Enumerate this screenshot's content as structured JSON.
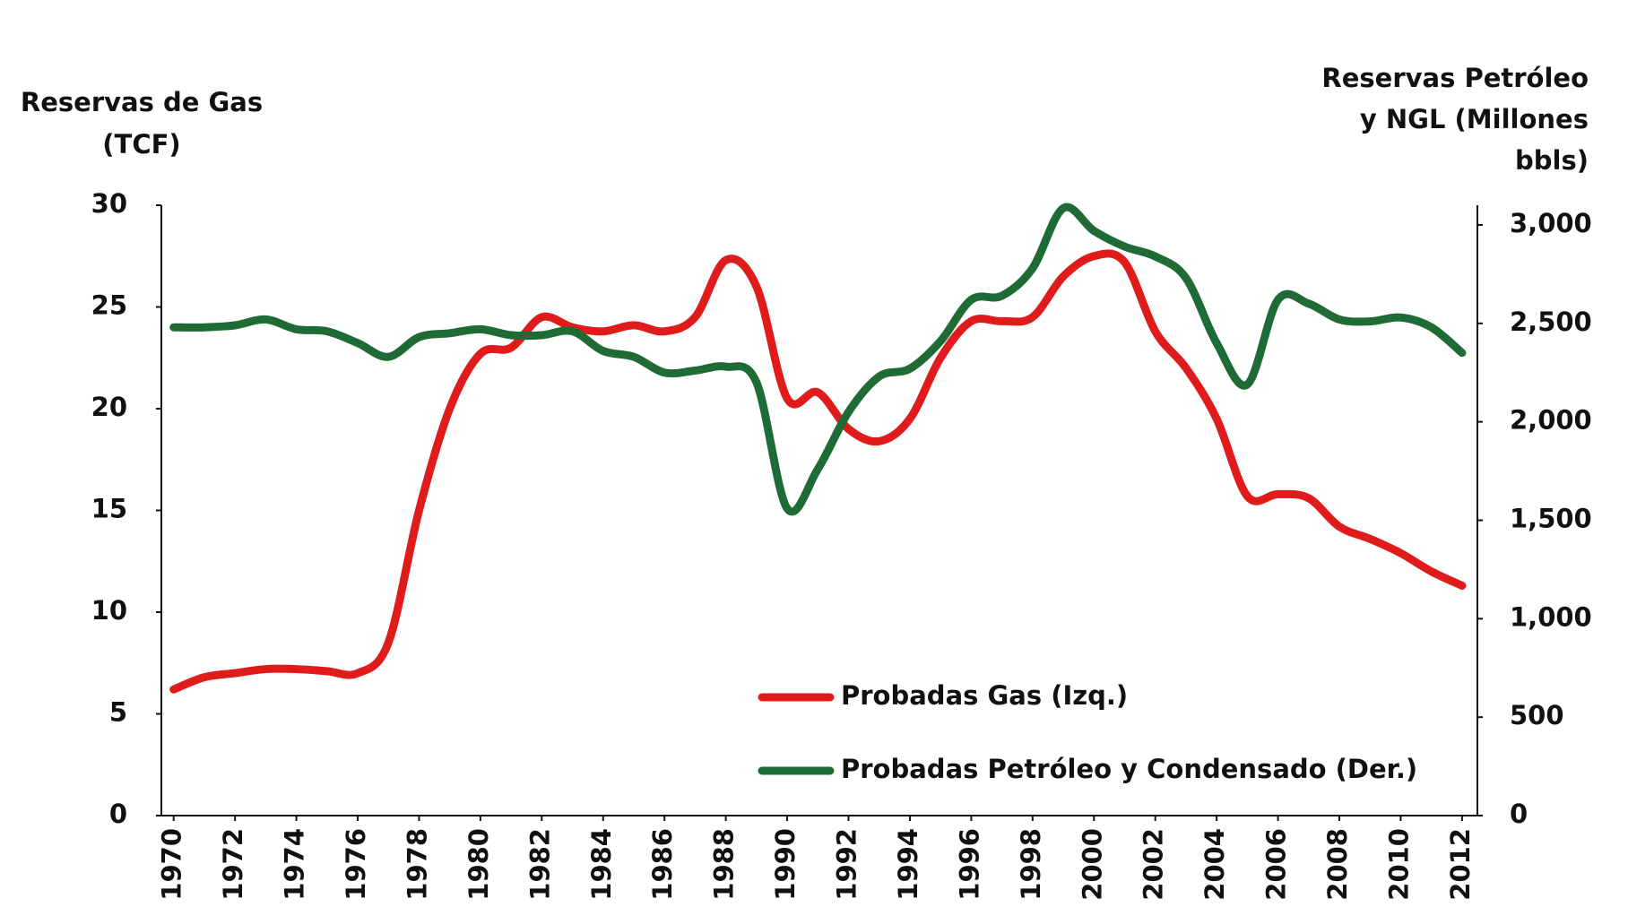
{
  "chart_data": {
    "type": "line",
    "y_title": [
      "Reservas de Gas",
      "(TCF)"
    ],
    "y2_title": [
      "Reservas  Petróleo",
      "y NGL (Millones",
      "bbls)"
    ],
    "x": [
      1970,
      1971,
      1972,
      1973,
      1974,
      1975,
      1976,
      1977,
      1978,
      1979,
      1980,
      1981,
      1982,
      1983,
      1984,
      1985,
      1986,
      1987,
      1988,
      1989,
      1990,
      1991,
      1992,
      1993,
      1994,
      1995,
      1996,
      1997,
      1998,
      1999,
      2000,
      2001,
      2002,
      2003,
      2004,
      2005,
      2006,
      2007,
      2008,
      2009,
      2010,
      2011,
      2012
    ],
    "xlim": [
      1969.6,
      2012.5
    ],
    "xticks": [
      1970,
      1972,
      1974,
      1976,
      1978,
      1980,
      1982,
      1984,
      1986,
      1988,
      1990,
      1992,
      1994,
      1996,
      1998,
      2000,
      2002,
      2004,
      2006,
      2008,
      2010,
      2012
    ],
    "ylim": [
      0,
      30
    ],
    "yticks": [
      0,
      5,
      10,
      15,
      20,
      25,
      30
    ],
    "y2lim": [
      0,
      3100
    ],
    "y2ticks": [
      0,
      500,
      {
        "value": 1000,
        "label": "1,000"
      },
      {
        "value": 1500,
        "label": "1,500"
      },
      {
        "value": 2000,
        "label": "2,000"
      },
      {
        "value": 2500,
        "label": "2,500"
      },
      {
        "value": 3000,
        "label": "3,000"
      }
    ],
    "legend": "lower right",
    "series": [
      {
        "name": "Probadas Gas (Izq.)",
        "color": "#e01b1b",
        "axis": "y",
        "values": [
          6.2,
          6.8,
          7.0,
          7.2,
          7.2,
          7.1,
          7.0,
          8.5,
          15,
          20,
          22.7,
          23.0,
          24.5,
          24.0,
          23.8,
          24.1,
          23.8,
          24.5,
          27.3,
          26.0,
          20.5,
          20.8,
          19.0,
          18.4,
          19.5,
          22.5,
          24.3,
          24.3,
          24.5,
          26.5,
          27.5,
          27.2,
          23.8,
          22.0,
          19.5,
          15.7,
          15.8,
          15.6,
          14.2,
          13.6,
          12.9,
          12.0,
          11.3
        ]
      },
      {
        "name": "Probadas Petróleo y Condensado (Der.)",
        "color": "#1f6b35",
        "axis": "y2",
        "values": [
          2480,
          2480,
          2490,
          2520,
          2470,
          2460,
          2400,
          2330,
          2430,
          2450,
          2470,
          2440,
          2440,
          2460,
          2360,
          2330,
          2250,
          2260,
          2280,
          2200,
          1560,
          1760,
          2050,
          2230,
          2270,
          2410,
          2620,
          2640,
          2780,
          3085,
          2970,
          2890,
          2840,
          2730,
          2400,
          2190,
          2620,
          2600,
          2520,
          2510,
          2530,
          2480,
          2350
        ]
      }
    ]
  }
}
